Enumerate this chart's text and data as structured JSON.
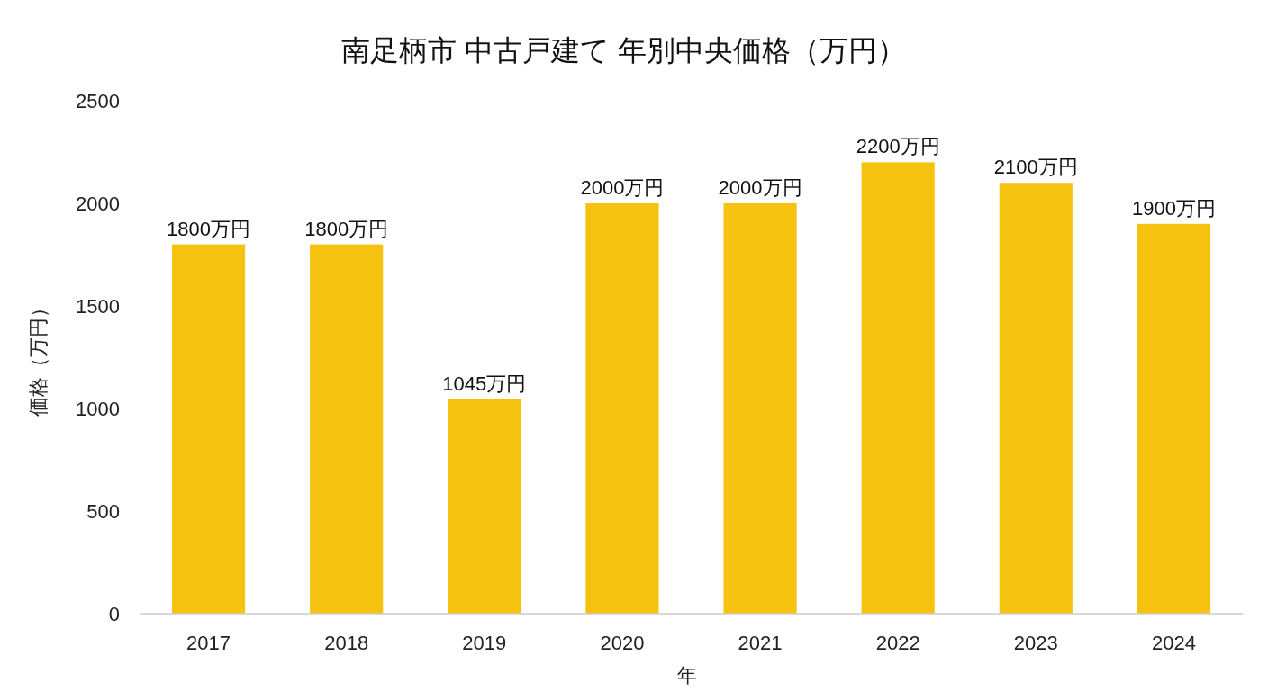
{
  "chart_data": {
    "type": "bar",
    "title": "南足柄市 中古戸建て 年別中央価格（万円）",
    "xlabel": "年",
    "ylabel": "価格（万円）",
    "categories": [
      "2017",
      "2018",
      "2019",
      "2020",
      "2021",
      "2022",
      "2023",
      "2024"
    ],
    "values": [
      1800,
      1800,
      1045,
      2000,
      2000,
      2200,
      2100,
      1900
    ],
    "value_labels": [
      "1800万円",
      "1800万円",
      "1045万円",
      "2000万円",
      "2000万円",
      "2200万円",
      "2100万円",
      "1900万円"
    ],
    "color": "#f5c30f",
    "ylim": [
      0,
      2500
    ],
    "yticks": [
      0,
      500,
      1000,
      1500,
      2000,
      2500
    ],
    "grid": false
  }
}
